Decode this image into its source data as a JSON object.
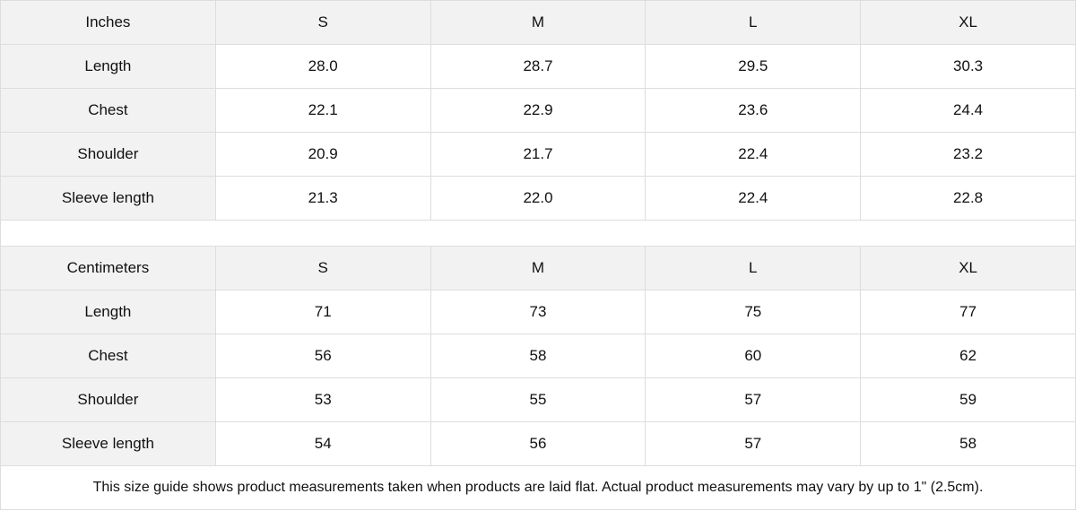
{
  "tables": [
    {
      "unit": "Inches",
      "sizes": [
        "S",
        "M",
        "L",
        "XL"
      ],
      "rows": [
        {
          "label": "Length",
          "values": [
            "28.0",
            "28.7",
            "29.5",
            "30.3"
          ]
        },
        {
          "label": "Chest",
          "values": [
            "22.1",
            "22.9",
            "23.6",
            "24.4"
          ]
        },
        {
          "label": "Shoulder",
          "values": [
            "20.9",
            "21.7",
            "22.4",
            "23.2"
          ]
        },
        {
          "label": "Sleeve length",
          "values": [
            "21.3",
            "22.0",
            "22.4",
            "22.8"
          ]
        }
      ]
    },
    {
      "unit": "Centimeters",
      "sizes": [
        "S",
        "M",
        "L",
        "XL"
      ],
      "rows": [
        {
          "label": "Length",
          "values": [
            "71",
            "73",
            "75",
            "77"
          ]
        },
        {
          "label": "Chest",
          "values": [
            "56",
            "58",
            "60",
            "62"
          ]
        },
        {
          "label": "Shoulder",
          "values": [
            "53",
            "55",
            "57",
            "59"
          ]
        },
        {
          "label": "Sleeve length",
          "values": [
            "54",
            "56",
            "57",
            "58"
          ]
        }
      ]
    }
  ],
  "note": "This size guide shows product measurements taken when products are laid flat.  Actual product measurements may vary by up to 1\" (2.5cm).",
  "colors": {
    "header_bg": "#f2f2f2",
    "border": "#dddddd"
  }
}
